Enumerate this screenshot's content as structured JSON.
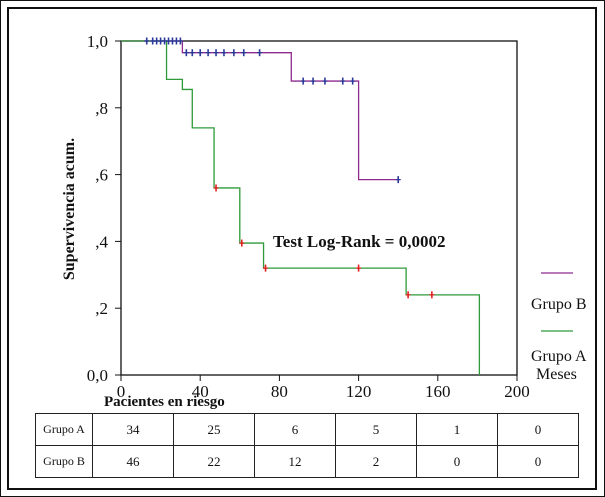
{
  "chart_data": {
    "type": "line",
    "subtype": "kaplan-meier",
    "ylabel": "Supervivencia acum.",
    "xlabel": "Meses",
    "xlim": [
      0,
      200
    ],
    "ylim": [
      0,
      1
    ],
    "x_ticks": [
      0,
      40,
      80,
      120,
      160,
      200
    ],
    "x_tick_labels": [
      "0",
      "40",
      "80",
      "120",
      "160",
      "200"
    ],
    "y_ticks": [
      0,
      0.2,
      0.4,
      0.6,
      0.8,
      1.0
    ],
    "y_tick_labels": [
      "0,0",
      ",2",
      ",4",
      ",6",
      ",8",
      "1,0"
    ],
    "grid": false,
    "legend_position": "right",
    "annotation": "Test Log-Rank = 0,0002",
    "series": [
      {
        "name": "Grupo B",
        "color": "#8f2a8f",
        "censor_color": "#2b3a9a",
        "steps": [
          [
            0,
            1.0
          ],
          [
            31,
            0.965
          ],
          [
            86,
            0.88
          ],
          [
            120,
            0.585
          ],
          [
            141,
            0.585
          ]
        ],
        "censored": [
          [
            13,
            1.0
          ],
          [
            16,
            1.0
          ],
          [
            18,
            1.0
          ],
          [
            20,
            1.0
          ],
          [
            22,
            1.0
          ],
          [
            24,
            1.0
          ],
          [
            26,
            1.0
          ],
          [
            28,
            1.0
          ],
          [
            30,
            1.0
          ],
          [
            33,
            0.965
          ],
          [
            36,
            0.965
          ],
          [
            40,
            0.965
          ],
          [
            44,
            0.965
          ],
          [
            48,
            0.965
          ],
          [
            52,
            0.965
          ],
          [
            57,
            0.965
          ],
          [
            62,
            0.965
          ],
          [
            70,
            0.965
          ],
          [
            92,
            0.88
          ],
          [
            97,
            0.88
          ],
          [
            103,
            0.88
          ],
          [
            112,
            0.88
          ],
          [
            117,
            0.88
          ],
          [
            140,
            0.585
          ]
        ]
      },
      {
        "name": "Grupo A",
        "color": "#2e9a3a",
        "censor_color": "#e02020",
        "steps": [
          [
            0,
            1.0
          ],
          [
            23,
            0.885
          ],
          [
            31,
            0.855
          ],
          [
            36,
            0.74
          ],
          [
            47,
            0.56
          ],
          [
            60,
            0.395
          ],
          [
            72,
            0.32
          ],
          [
            144,
            0.24
          ],
          [
            181,
            0.0
          ]
        ],
        "censored": [
          [
            48,
            0.56
          ],
          [
            61,
            0.395
          ],
          [
            73,
            0.32
          ],
          [
            120,
            0.32
          ],
          [
            145,
            0.24
          ],
          [
            157,
            0.24
          ]
        ]
      }
    ]
  },
  "risk_table": {
    "title": "Pacientes en riesgo",
    "rows": [
      {
        "label": "Grupo A",
        "values": [
          "34",
          "25",
          "6",
          "5",
          "1",
          "0"
        ]
      },
      {
        "label": "Grupo B",
        "values": [
          "46",
          "22",
          "12",
          "2",
          "0",
          "0"
        ]
      }
    ]
  }
}
